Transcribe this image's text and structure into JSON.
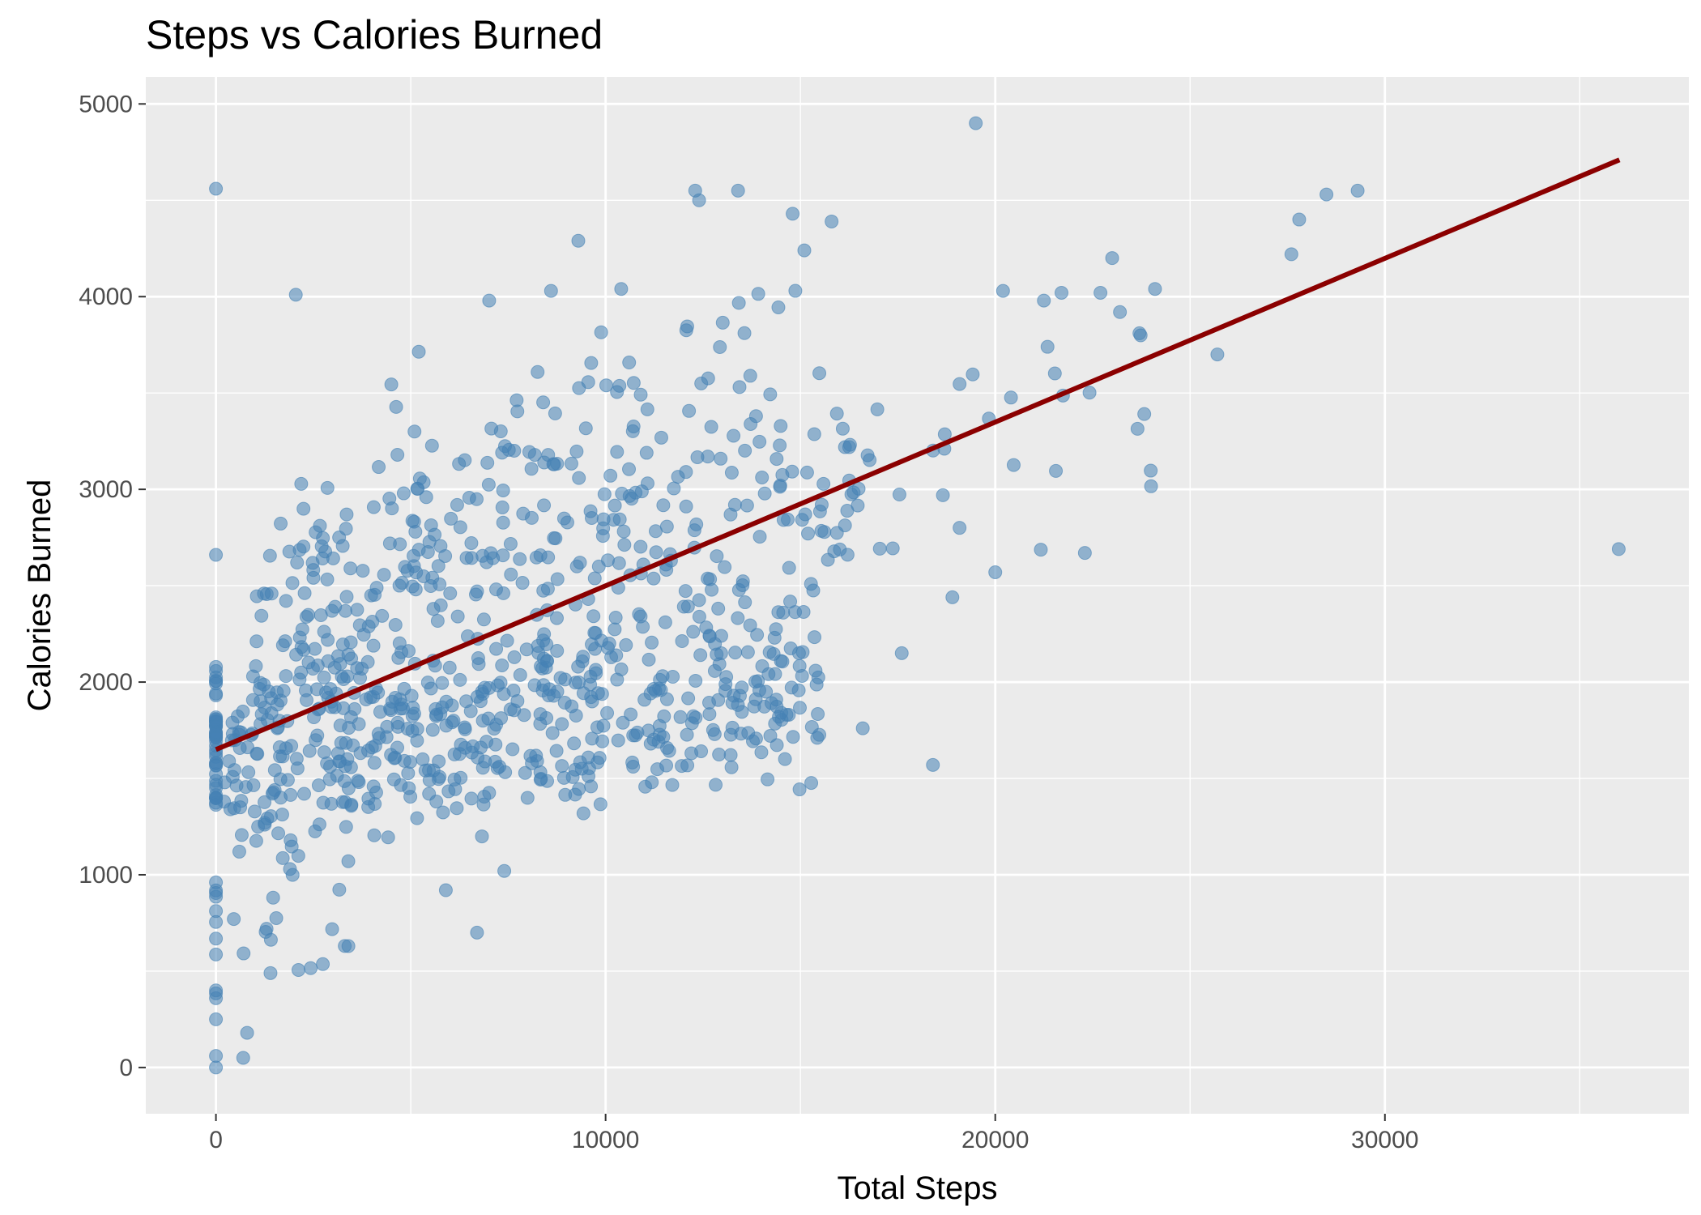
{
  "chart_data": {
    "type": "scatter",
    "title": "Steps vs Calories Burned",
    "xlabel": "Total Steps",
    "ylabel": "Calories Burned",
    "xlim": [
      -1800,
      37800
    ],
    "ylim": [
      -240,
      5140
    ],
    "x_ticks": [
      0,
      10000,
      20000,
      30000
    ],
    "x_tick_labels": [
      "0",
      "10000",
      "20000",
      "30000"
    ],
    "y_ticks": [
      0,
      1000,
      2000,
      3000,
      4000,
      5000
    ],
    "y_tick_labels": [
      "0",
      "1000",
      "2000",
      "3000",
      "4000",
      "5000"
    ],
    "grid": true,
    "legend": "none",
    "colors": {
      "panel_background": "#ebebeb",
      "grid": "#ffffff",
      "points": "#4682b4",
      "trend_line": "#8b0000"
    },
    "trend_line": {
      "x": [
        0,
        36019
      ],
      "y": [
        1650,
        4710
      ]
    },
    "anchor_points": [
      [
        0,
        4560
      ],
      [
        19500,
        4900
      ],
      [
        36000,
        2690
      ],
      [
        2050,
        4010
      ],
      [
        0,
        2660
      ],
      [
        29300,
        4550
      ],
      [
        28500,
        4530
      ],
      [
        27800,
        4400
      ],
      [
        27600,
        4220
      ],
      [
        25700,
        3700
      ],
      [
        24100,
        4040
      ],
      [
        23200,
        3920
      ],
      [
        23000,
        4200
      ],
      [
        22700,
        4020
      ],
      [
        23700,
        3810
      ],
      [
        21700,
        4020
      ],
      [
        22300,
        2670
      ],
      [
        20200,
        4030
      ],
      [
        20000,
        2570
      ],
      [
        18400,
        1570
      ],
      [
        18900,
        2440
      ],
      [
        17600,
        2150
      ],
      [
        16600,
        1760
      ],
      [
        12300,
        4550
      ],
      [
        13400,
        4550
      ],
      [
        12400,
        4500
      ],
      [
        14800,
        4430
      ],
      [
        15800,
        4390
      ],
      [
        9300,
        4290
      ],
      [
        8600,
        4030
      ],
      [
        10400,
        4040
      ],
      [
        15100,
        4240
      ],
      [
        0,
        0
      ],
      [
        0,
        60
      ],
      [
        0,
        250
      ],
      [
        0,
        400
      ],
      [
        800,
        180
      ],
      [
        700,
        50
      ],
      [
        1300,
        720
      ],
      [
        1400,
        490
      ],
      [
        6700,
        700
      ],
      [
        7400,
        1020
      ],
      [
        5900,
        920
      ],
      [
        3400,
        630
      ],
      [
        1900,
        1030
      ],
      [
        600,
        1120
      ]
    ]
  }
}
